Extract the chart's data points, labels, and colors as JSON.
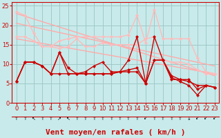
{
  "xlabel": "Vent moyen/en rafales ( km/h )",
  "bg_color": "#c8eaea",
  "grid_color": "#a0c8c8",
  "xlim": [
    -0.5,
    23.5
  ],
  "ylim": [
    0,
    26
  ],
  "yticks": [
    0,
    5,
    10,
    15,
    20,
    25
  ],
  "xticks": [
    0,
    1,
    2,
    3,
    4,
    5,
    6,
    7,
    8,
    9,
    10,
    11,
    12,
    13,
    14,
    15,
    16,
    17,
    18,
    19,
    20,
    21,
    22,
    23
  ],
  "series": [
    {
      "x": [
        0,
        1,
        2,
        3,
        4,
        5,
        6,
        7,
        8,
        9,
        10,
        11,
        12,
        13,
        14,
        15,
        16,
        17,
        18,
        19,
        20,
        21,
        22,
        23
      ],
      "y": [
        23.5,
        22.5,
        null,
        null,
        null,
        null,
        null,
        null,
        null,
        null,
        null,
        null,
        null,
        null,
        null,
        null,
        null,
        null,
        null,
        null,
        null,
        null,
        null,
        null
      ]
    },
    {
      "x": [
        0,
        23
      ],
      "y": [
        23.0,
        7.0
      ],
      "color": "#ffaaaa",
      "lw": 1.0,
      "marker": false
    },
    {
      "x": [
        0,
        23
      ],
      "y": [
        20.5,
        9.5
      ],
      "color": "#ffaaaa",
      "lw": 1.0,
      "marker": false
    },
    {
      "x": [
        0,
        23
      ],
      "y": [
        16.5,
        7.5
      ],
      "color": "#ffaaaa",
      "lw": 1.0,
      "marker": false
    },
    {
      "x": [
        0,
        1,
        2,
        3,
        4,
        5,
        6,
        7,
        8,
        9,
        10,
        11,
        12,
        13,
        14,
        15,
        16,
        17,
        18,
        19,
        20,
        21,
        22,
        23
      ],
      "y": [
        23.5,
        22.5,
        18.0,
        14.5,
        14.5,
        16.0,
        16.5,
        17.0,
        17.0,
        17.0,
        17.0,
        17.0,
        17.0,
        17.5,
        22.5,
        15.5,
        24.0,
        16.5,
        16.5,
        16.5,
        16.5,
        11.5,
        8.0,
        7.5
      ],
      "color": "#ffbbbb",
      "lw": 1.0,
      "marker": true
    },
    {
      "x": [
        0,
        1,
        2,
        3,
        4,
        5,
        6,
        7,
        8,
        9,
        10,
        11,
        12,
        13,
        14,
        15,
        16,
        17,
        18,
        19,
        20,
        21,
        22,
        23
      ],
      "y": [
        17.0,
        17.0,
        16.0,
        14.5,
        14.5,
        14.0,
        14.5,
        16.5,
        14.5,
        14.5,
        15.5,
        15.0,
        15.0,
        15.0,
        15.0,
        16.5,
        17.0,
        11.0,
        10.5,
        10.5,
        10.0,
        8.5,
        7.5,
        7.5
      ],
      "color": "#ffbbbb",
      "lw": 1.0,
      "marker": true
    },
    {
      "x": [
        0,
        1,
        2,
        3,
        4,
        5,
        6,
        7,
        8,
        9,
        10,
        11,
        12,
        13,
        14,
        15,
        16,
        17,
        18,
        19,
        20,
        21,
        22,
        23
      ],
      "y": [
        5.5,
        10.5,
        10.5,
        9.5,
        7.5,
        13.0,
        9.0,
        7.5,
        8.0,
        9.5,
        10.5,
        8.0,
        8.0,
        11.0,
        17.0,
        5.0,
        17.0,
        11.0,
        6.0,
        6.0,
        6.0,
        3.5,
        4.5,
        4.0
      ],
      "color": "#cc0000",
      "lw": 1.0,
      "marker": true
    },
    {
      "x": [
        0,
        1,
        2,
        3,
        4,
        5,
        6,
        7,
        8,
        9,
        10,
        11,
        12,
        13,
        14,
        15,
        16,
        17,
        18,
        19,
        20,
        21,
        22,
        23
      ],
      "y": [
        5.5,
        10.5,
        10.5,
        9.5,
        7.5,
        7.5,
        7.5,
        7.5,
        7.5,
        7.5,
        7.5,
        7.5,
        8.0,
        8.0,
        8.0,
        5.0,
        11.0,
        11.0,
        7.0,
        6.0,
        5.5,
        4.5,
        4.5,
        4.0
      ],
      "color": "#cc0000",
      "lw": 1.0,
      "marker": true
    },
    {
      "x": [
        0,
        1,
        2,
        3,
        4,
        5,
        6,
        7,
        8,
        9,
        10,
        11,
        12,
        13,
        14,
        15,
        16,
        17,
        18,
        19,
        20,
        21,
        22,
        23
      ],
      "y": [
        5.5,
        10.5,
        10.5,
        9.5,
        7.5,
        13.0,
        7.5,
        7.5,
        7.5,
        7.5,
        7.5,
        7.5,
        8.0,
        8.5,
        9.0,
        5.0,
        11.0,
        11.0,
        6.5,
        5.5,
        4.5,
        2.0,
        4.5,
        4.0
      ],
      "color": "#cc0000",
      "lw": 1.0,
      "marker": true
    }
  ],
  "wind_arrows": [
    "↑",
    "↑",
    "↖",
    "↑",
    "↑",
    "↗",
    "↖",
    "↑",
    "↑",
    "↑",
    "↑",
    "↑",
    "↑",
    "↑",
    "↑",
    "↙",
    "↑",
    "↑",
    "↑",
    "↑",
    "↓",
    "↙",
    "↙",
    "↙"
  ],
  "xlabel_fontsize": 8,
  "tick_fontsize": 6,
  "arrow_fontsize": 5
}
